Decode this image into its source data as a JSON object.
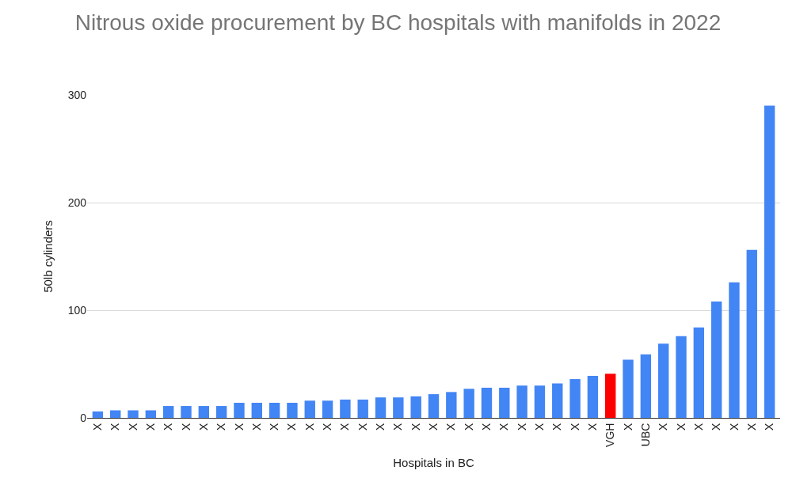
{
  "chart_data": {
    "type": "bar",
    "title": "Nitrous oxide procurement by BC hospitals with manifolds in 2022",
    "xlabel": "Hospitals in BC",
    "ylabel": "50lb cylinders",
    "categories": [
      "X",
      "X",
      "X",
      "X",
      "X",
      "X",
      "X",
      "X",
      "X",
      "X",
      "X",
      "X",
      "X",
      "X",
      "X",
      "X",
      "X",
      "X",
      "X",
      "X",
      "X",
      "X",
      "X",
      "X",
      "X",
      "X",
      "X",
      "X",
      "X",
      "VGH",
      "X",
      "UBC",
      "X",
      "X",
      "X",
      "X",
      "X",
      "X",
      "X"
    ],
    "values": [
      6,
      7,
      7,
      7,
      11,
      11,
      11,
      11,
      14,
      14,
      14,
      14,
      16,
      16,
      17,
      17,
      19,
      19,
      20,
      22,
      24,
      27,
      28,
      28,
      30,
      30,
      32,
      36,
      39,
      41,
      54,
      59,
      69,
      76,
      84,
      108,
      126,
      156,
      290
    ],
    "colors": [
      "#4285f4",
      "#4285f4",
      "#4285f4",
      "#4285f4",
      "#4285f4",
      "#4285f4",
      "#4285f4",
      "#4285f4",
      "#4285f4",
      "#4285f4",
      "#4285f4",
      "#4285f4",
      "#4285f4",
      "#4285f4",
      "#4285f4",
      "#4285f4",
      "#4285f4",
      "#4285f4",
      "#4285f4",
      "#4285f4",
      "#4285f4",
      "#4285f4",
      "#4285f4",
      "#4285f4",
      "#4285f4",
      "#4285f4",
      "#4285f4",
      "#4285f4",
      "#4285f4",
      "#ff0000",
      "#4285f4",
      "#4285f4",
      "#4285f4",
      "#4285f4",
      "#4285f4",
      "#4285f4",
      "#4285f4",
      "#4285f4",
      "#4285f4"
    ],
    "ylim": [
      0,
      300
    ],
    "yticks": [
      0,
      100,
      200,
      300
    ],
    "grid": "y",
    "legend": false
  }
}
